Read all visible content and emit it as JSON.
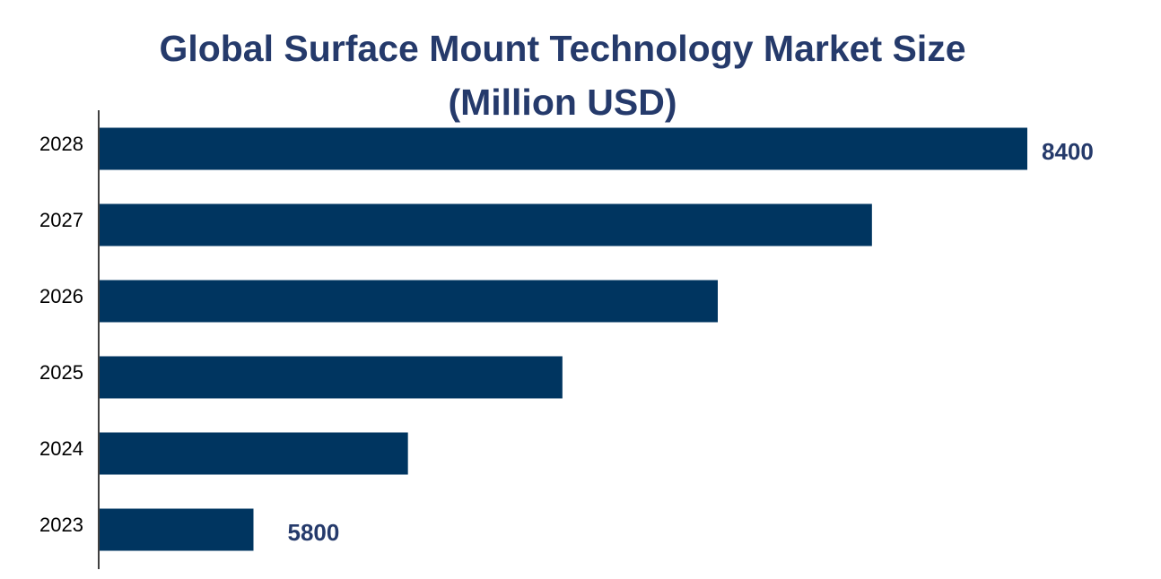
{
  "chart_data": {
    "type": "bar",
    "orientation": "horizontal",
    "title": "Global Surface Mount Technology Market Size (Million USD)",
    "categories": [
      "2028",
      "2027",
      "2026",
      "2025",
      "2024",
      "2023"
    ],
    "values": [
      8400,
      7878,
      7360,
      6838,
      6319,
      5800
    ],
    "color": "#003560",
    "xlim": [
      5280,
      8400
    ]
  }
}
